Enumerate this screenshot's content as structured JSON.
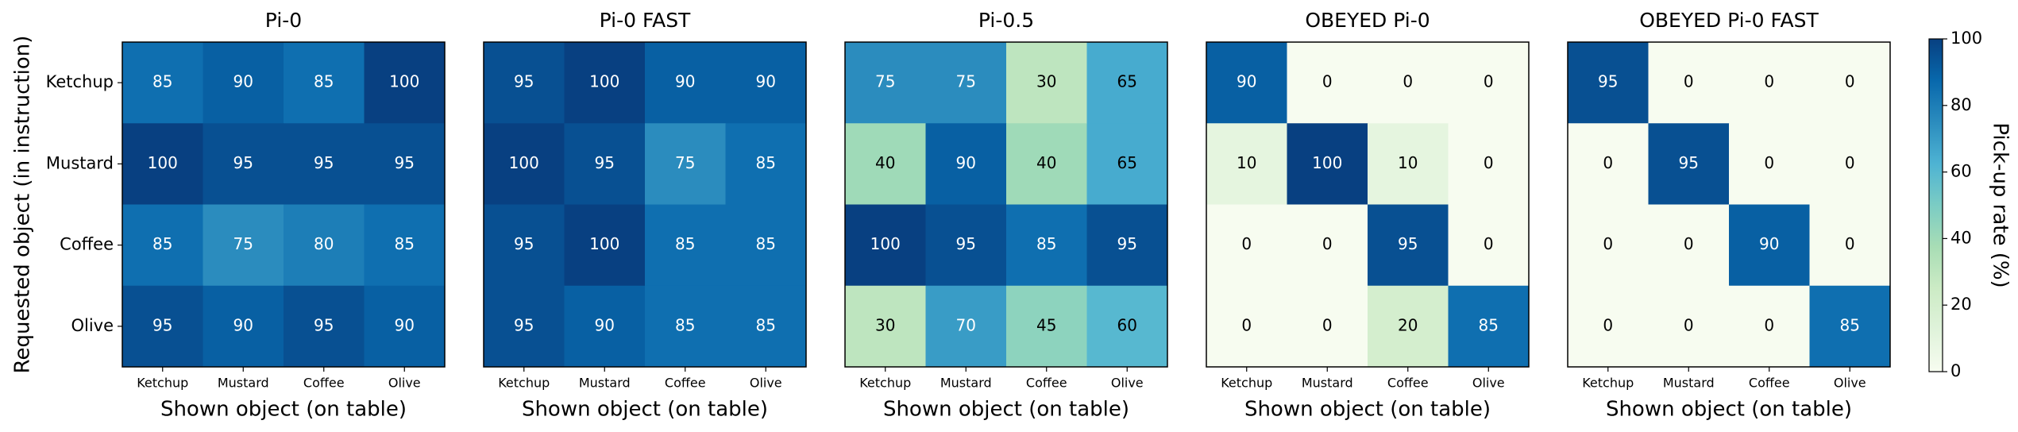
{
  "chart_data": [
    {
      "type": "heatmap",
      "title": "Pi-0",
      "x_categories": [
        "Ketchup",
        "Mustard",
        "Coffee",
        "Olive"
      ],
      "y_categories": [
        "Ketchup",
        "Mustard",
        "Coffee",
        "Olive"
      ],
      "xlabel": "Shown object (on table)",
      "ylabel": "Requested object (in instruction)",
      "values": [
        [
          85,
          90,
          85,
          100
        ],
        [
          100,
          95,
          95,
          95
        ],
        [
          85,
          75,
          80,
          85
        ],
        [
          95,
          90,
          95,
          90
        ]
      ]
    },
    {
      "type": "heatmap",
      "title": "Pi-0 FAST",
      "x_categories": [
        "Ketchup",
        "Mustard",
        "Coffee",
        "Olive"
      ],
      "xlabel": "Shown object (on table)",
      "values": [
        [
          95,
          100,
          90,
          90
        ],
        [
          100,
          95,
          75,
          85
        ],
        [
          95,
          100,
          85,
          85
        ],
        [
          95,
          90,
          85,
          85
        ]
      ]
    },
    {
      "type": "heatmap",
      "title": "Pi-0.5",
      "x_categories": [
        "Ketchup",
        "Mustard",
        "Coffee",
        "Olive"
      ],
      "xlabel": "Shown object (on table)",
      "values": [
        [
          75,
          75,
          30,
          65
        ],
        [
          40,
          90,
          40,
          65
        ],
        [
          100,
          95,
          85,
          95
        ],
        [
          30,
          70,
          45,
          60
        ]
      ]
    },
    {
      "type": "heatmap",
      "title": "OBEYED Pi-0",
      "x_categories": [
        "Ketchup",
        "Mustard",
        "Coffee",
        "Olive"
      ],
      "xlabel": "Shown object (on table)",
      "values": [
        [
          90,
          0,
          0,
          0
        ],
        [
          10,
          100,
          10,
          0
        ],
        [
          0,
          0,
          95,
          0
        ],
        [
          0,
          0,
          20,
          85
        ]
      ]
    },
    {
      "type": "heatmap",
      "title": "OBEYED Pi-0 FAST",
      "x_categories": [
        "Ketchup",
        "Mustard",
        "Coffee",
        "Olive"
      ],
      "xlabel": "Shown object (on table)",
      "values": [
        [
          95,
          0,
          0,
          0
        ],
        [
          0,
          95,
          0,
          0
        ],
        [
          0,
          0,
          90,
          0
        ],
        [
          0,
          0,
          0,
          85
        ]
      ]
    },
    {
      "type": "colorbar",
      "label": "Pick-up rate (%)",
      "colormap": "GnBu",
      "lim": [
        0,
        100
      ],
      "ticks": [
        0,
        20,
        40,
        60,
        80,
        100
      ]
    }
  ]
}
